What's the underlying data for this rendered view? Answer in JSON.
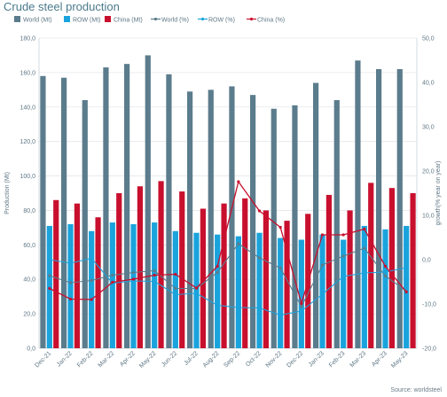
{
  "title": "Crude steel production",
  "source": "Source: worldsteel",
  "colors": {
    "world_bar": "#5b7c8c",
    "row_bar": "#1aa3dc",
    "china_bar": "#c8102e",
    "world_line": "#5b7c8c",
    "row_line": "#1aa3dc",
    "china_line": "#c8102e",
    "grid": "#e3e8ec",
    "axis_text": "#5f7785"
  },
  "chart_data": {
    "type": "bar",
    "title": "Crude steel production",
    "categories": [
      "Dec-21",
      "Jan-22",
      "Feb-22",
      "Mar-22",
      "Apr-22",
      "May-22",
      "Jun-22",
      "Jul-22",
      "Aug-22",
      "Sep-22",
      "Oct-22",
      "Nov-22",
      "Dec-22",
      "Jan-23",
      "Feb-23",
      "Mar-23",
      "Apr-23",
      "May-23"
    ],
    "ylabel": "Production (Mt)",
    "y2label": "growth(% year on year)",
    "ylim": [
      0,
      180
    ],
    "yticks": [
      "0,0",
      "20,0",
      "40,0",
      "60,0",
      "80,0",
      "100,0",
      "120,0",
      "140,0",
      "160,0",
      "180,0"
    ],
    "y2lim": [
      -20,
      50
    ],
    "y2ticks": [
      "-20,0",
      "-10,0",
      "0,0",
      "10,0",
      "20,0",
      "30,0",
      "40,0",
      "50,0"
    ],
    "grid": true,
    "legend_position": "top",
    "bar_series": [
      {
        "name": "World (Mt)",
        "values": [
          158,
          157,
          144,
          163,
          165,
          170,
          159,
          149,
          150,
          152,
          147,
          139,
          141,
          154,
          144,
          167,
          162,
          162
        ]
      },
      {
        "name": "ROW (Mt)",
        "values": [
          71,
          72,
          68,
          73,
          72,
          73,
          68,
          67,
          66,
          65,
          67,
          64,
          63,
          66,
          63,
          71,
          69,
          71
        ]
      },
      {
        "name": "China (Mt)",
        "values": [
          86,
          84,
          76,
          90,
          94,
          97,
          91,
          81,
          84,
          87,
          80,
          74,
          78,
          89,
          80,
          96,
          93,
          90
        ]
      }
    ],
    "line_series": [
      {
        "name": "World (%)",
        "values": [
          -3.6,
          -5.2,
          -4.7,
          -3.5,
          -2.9,
          -2.5,
          -6.5,
          -6.5,
          -2.9,
          3.6,
          0.4,
          -1.9,
          -10.6,
          -1.2,
          0.8,
          2.6,
          -3.7,
          -7.1
        ]
      },
      {
        "name": "ROW (%)",
        "values": [
          0.0,
          -0.8,
          0.3,
          -5.3,
          -4.8,
          -4.9,
          -7.9,
          -7.6,
          -10.3,
          -10.8,
          -10.9,
          -12.5,
          -11.6,
          -7.8,
          -3.8,
          -3.0,
          -2.8,
          -1.8
        ]
      },
      {
        "name": "China (%)",
        "values": [
          -6.5,
          -8.9,
          -9.0,
          -5.1,
          -4.4,
          -3.5,
          -3.3,
          -6.4,
          -1.5,
          17.6,
          11.0,
          7.3,
          -9.9,
          5.6,
          5.6,
          6.9,
          -1.5,
          -7.3
        ]
      }
    ]
  }
}
